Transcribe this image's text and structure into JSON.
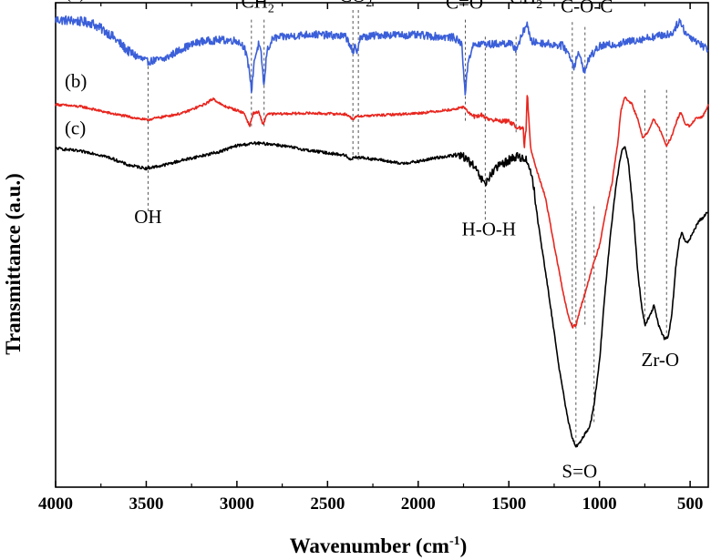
{
  "chart_data": {
    "type": "line",
    "title": "",
    "xlabel": "Wavenumber",
    "xlabel_unit": "(cm",
    "xlabel_unit_sup": "-1",
    "xlabel_unit_close": ")",
    "ylabel": "Transmittance (a.u.)",
    "xlim": [
      4000,
      400
    ],
    "ylim": [
      0,
      100
    ],
    "x_ticks": [
      4000,
      3500,
      3000,
      2500,
      2000,
      1500,
      1000,
      500
    ],
    "x_tick_labels": [
      "4000",
      "3500",
      "3000",
      "2500",
      "2000",
      "1500",
      "1000",
      "500"
    ],
    "y_ticks_shown": false,
    "series": [
      {
        "name": "(a)",
        "color": "#3b5fd9",
        "noise": 1.6,
        "points": [
          [
            4000,
            96.5
          ],
          [
            3900,
            96.3
          ],
          [
            3800,
            95.8
          ],
          [
            3700,
            93.5
          ],
          [
            3600,
            90.0
          ],
          [
            3500,
            87.8
          ],
          [
            3400,
            88.4
          ],
          [
            3300,
            90.6
          ],
          [
            3200,
            92.0
          ],
          [
            3100,
            92.3
          ],
          [
            3000,
            92.2
          ],
          [
            2960,
            91.0
          ],
          [
            2930,
            86.0
          ],
          [
            2920,
            81.5
          ],
          [
            2905,
            88.0
          ],
          [
            2880,
            91.5
          ],
          [
            2865,
            89.0
          ],
          [
            2850,
            82.5
          ],
          [
            2835,
            90.0
          ],
          [
            2800,
            92.7
          ],
          [
            2600,
            93.5
          ],
          [
            2500,
            93.3
          ],
          [
            2400,
            93.0
          ],
          [
            2370,
            91.0
          ],
          [
            2360,
            88.8
          ],
          [
            2350,
            91.0
          ],
          [
            2340,
            89.8
          ],
          [
            2320,
            92.8
          ],
          [
            2200,
            93.4
          ],
          [
            2000,
            93.3
          ],
          [
            1800,
            92.8
          ],
          [
            1760,
            91.5
          ],
          [
            1740,
            81.0
          ],
          [
            1725,
            88.0
          ],
          [
            1700,
            91.0
          ],
          [
            1650,
            91.6
          ],
          [
            1600,
            91.4
          ],
          [
            1500,
            91.7
          ],
          [
            1460,
            90.5
          ],
          [
            1430,
            93.0
          ],
          [
            1400,
            96.0
          ],
          [
            1380,
            92.0
          ],
          [
            1300,
            91.6
          ],
          [
            1200,
            91.1
          ],
          [
            1160,
            88.8
          ],
          [
            1140,
            86.8
          ],
          [
            1120,
            89.5
          ],
          [
            1100,
            88.0
          ],
          [
            1080,
            85.5
          ],
          [
            1060,
            88.5
          ],
          [
            1000,
            91.0
          ],
          [
            900,
            91.5
          ],
          [
            800,
            92.3
          ],
          [
            700,
            93.0
          ],
          [
            600,
            93.6
          ],
          [
            560,
            96.3
          ],
          [
            520,
            93.5
          ],
          [
            460,
            92.0
          ],
          [
            420,
            90.8
          ],
          [
            400,
            90.5
          ]
        ]
      },
      {
        "name": "(b)",
        "color": "#e8261f",
        "noise": 0.5,
        "points": [
          [
            4000,
            79.0
          ],
          [
            3850,
            78.5
          ],
          [
            3700,
            77.2
          ],
          [
            3500,
            75.8
          ],
          [
            3300,
            77.2
          ],
          [
            3180,
            79.0
          ],
          [
            3130,
            80.2
          ],
          [
            3080,
            78.8
          ],
          [
            3000,
            77.8
          ],
          [
            2960,
            77.2
          ],
          [
            2930,
            74.6
          ],
          [
            2910,
            77.2
          ],
          [
            2880,
            77.4
          ],
          [
            2855,
            74.8
          ],
          [
            2835,
            77.0
          ],
          [
            2600,
            77.2
          ],
          [
            2400,
            77.0
          ],
          [
            2360,
            76.0
          ],
          [
            2330,
            76.6
          ],
          [
            2200,
            76.8
          ],
          [
            2000,
            77.2
          ],
          [
            1800,
            78.0
          ],
          [
            1750,
            78.5
          ],
          [
            1700,
            76.5
          ],
          [
            1650,
            76.8
          ],
          [
            1600,
            75.8
          ],
          [
            1500,
            75.5
          ],
          [
            1460,
            74.5
          ],
          [
            1430,
            73.8
          ],
          [
            1420,
            74.0
          ],
          [
            1415,
            70.0
          ],
          [
            1405,
            74.0
          ],
          [
            1398,
            81.5
          ],
          [
            1390,
            76.0
          ],
          [
            1380,
            70.0
          ],
          [
            1350,
            66.0
          ],
          [
            1300,
            60.0
          ],
          [
            1250,
            50.0
          ],
          [
            1200,
            40.0
          ],
          [
            1170,
            35.0
          ],
          [
            1150,
            33.0
          ],
          [
            1130,
            33.5
          ],
          [
            1100,
            37.5
          ],
          [
            1050,
            44.0
          ],
          [
            1000,
            50.0
          ],
          [
            970,
            56.0
          ],
          [
            930,
            63.0
          ],
          [
            900,
            71.0
          ],
          [
            880,
            78.0
          ],
          [
            860,
            80.5
          ],
          [
            820,
            79.0
          ],
          [
            790,
            76.0
          ],
          [
            760,
            72.0
          ],
          [
            730,
            73.5
          ],
          [
            700,
            76.0
          ],
          [
            670,
            74.0
          ],
          [
            630,
            70.5
          ],
          [
            600,
            72.5
          ],
          [
            570,
            76.0
          ],
          [
            550,
            77.5
          ],
          [
            530,
            75.0
          ],
          [
            500,
            74.5
          ],
          [
            470,
            76.0
          ],
          [
            430,
            76.5
          ],
          [
            400,
            79.0
          ]
        ]
      },
      {
        "name": "(c)",
        "color": "#000000",
        "noise": 0.6,
        "points": [
          [
            4000,
            70.0
          ],
          [
            3800,
            69.0
          ],
          [
            3700,
            68.0
          ],
          [
            3600,
            66.5
          ],
          [
            3500,
            65.8
          ],
          [
            3400,
            66.5
          ],
          [
            3300,
            67.5
          ],
          [
            3100,
            69.2
          ],
          [
            3000,
            70.5
          ],
          [
            2900,
            71.0
          ],
          [
            2800,
            70.8
          ],
          [
            2600,
            69.5
          ],
          [
            2400,
            68.5
          ],
          [
            2380,
            67.6
          ],
          [
            2350,
            68.2
          ],
          [
            2200,
            67.5
          ],
          [
            2100,
            66.8
          ],
          [
            2000,
            67.2
          ],
          [
            1900,
            68.0
          ],
          [
            1800,
            68.5
          ],
          [
            1750,
            68.3
          ],
          [
            1700,
            66.5
          ],
          [
            1650,
            63.5
          ],
          [
            1630,
            62.5
          ],
          [
            1600,
            64.5
          ],
          [
            1550,
            66.5
          ],
          [
            1500,
            67.5
          ],
          [
            1450,
            68.3
          ],
          [
            1400,
            67.5
          ],
          [
            1370,
            64.0
          ],
          [
            1340,
            55.0
          ],
          [
            1300,
            45.0
          ],
          [
            1250,
            32.0
          ],
          [
            1220,
            24.0
          ],
          [
            1180,
            15.0
          ],
          [
            1150,
            10.0
          ],
          [
            1130,
            8.5
          ],
          [
            1110,
            9.0
          ],
          [
            1090,
            10.5
          ],
          [
            1070,
            11.5
          ],
          [
            1050,
            13.0
          ],
          [
            1030,
            17.0
          ],
          [
            1000,
            26.0
          ],
          [
            970,
            40.0
          ],
          [
            940,
            52.0
          ],
          [
            910,
            62.0
          ],
          [
            880,
            69.0
          ],
          [
            860,
            70.5
          ],
          [
            840,
            67.0
          ],
          [
            810,
            55.0
          ],
          [
            790,
            45.0
          ],
          [
            770,
            38.0
          ],
          [
            750,
            33.5
          ],
          [
            720,
            35.5
          ],
          [
            700,
            37.5
          ],
          [
            670,
            33.0
          ],
          [
            640,
            30.5
          ],
          [
            620,
            31.0
          ],
          [
            600,
            36.0
          ],
          [
            580,
            45.0
          ],
          [
            560,
            51.0
          ],
          [
            545,
            52.5
          ],
          [
            530,
            51.0
          ],
          [
            510,
            50.5
          ],
          [
            480,
            53.0
          ],
          [
            450,
            55.0
          ],
          [
            420,
            56.0
          ],
          [
            400,
            57.0
          ]
        ]
      }
    ],
    "series_labels": [
      {
        "text": "(a)",
        "x": 3950,
        "y": 101.0
      },
      {
        "text": "(b)",
        "x": 3950,
        "y": 82.5
      },
      {
        "text": "(c)",
        "x": 3950,
        "y": 72.8
      }
    ],
    "annotations": [
      {
        "key": "oh",
        "text": "OH",
        "sub": "",
        "x": 3490,
        "y": 54.5
      },
      {
        "key": "ch2a",
        "text": "CH",
        "sub": "2",
        "x": 2885,
        "y": 99.0
      },
      {
        "key": "co2",
        "text": "CO",
        "sub": "2",
        "x": 2345,
        "y": 100.2
      },
      {
        "key": "co",
        "text": "C=O",
        "sub": "",
        "x": 1745,
        "y": 98.8
      },
      {
        "key": "ch2b",
        "text": "CH",
        "sub": "2",
        "x": 1405,
        "y": 99.8
      },
      {
        "key": "coc",
        "text": "C-O-C",
        "sub": "",
        "x": 1070,
        "y": 98.0
      },
      {
        "key": "hoh",
        "text": "H-O-H",
        "sub": "",
        "x": 1610,
        "y": 52.0
      },
      {
        "key": "so",
        "text": "S=O",
        "sub": "",
        "x": 1110,
        "y": 2.0
      },
      {
        "key": "zro",
        "text": "Zr-O",
        "sub": "",
        "x": 665,
        "y": 25.0
      }
    ],
    "reference_lines": [
      {
        "x": 3490,
        "y1": 88.0,
        "y2": 56.5
      },
      {
        "x": 2920,
        "y1": 96.5,
        "y2": 74.0
      },
      {
        "x": 2850,
        "y1": 96.5,
        "y2": 74.0
      },
      {
        "x": 2360,
        "y1": 98.5,
        "y2": 67.0
      },
      {
        "x": 2330,
        "y1": 98.5,
        "y2": 67.0
      },
      {
        "x": 1740,
        "y1": 96.5,
        "y2": 75.5
      },
      {
        "x": 1630,
        "y1": 93.0,
        "y2": 55.0
      },
      {
        "x": 1460,
        "y1": 93.0,
        "y2": 73.0
      },
      {
        "x": 1150,
        "y1": 96.0,
        "y2": 33.0
      },
      {
        "x": 1080,
        "y1": 95.0,
        "y2": 33.5
      },
      {
        "x": 1130,
        "y1": 57.0,
        "y2": 9.5
      },
      {
        "x": 1030,
        "y1": 58.0,
        "y2": 13.0
      },
      {
        "x": 750,
        "y1": 82.0,
        "y2": 33.5
      },
      {
        "x": 630,
        "y1": 82.0,
        "y2": 30.5
      }
    ]
  }
}
